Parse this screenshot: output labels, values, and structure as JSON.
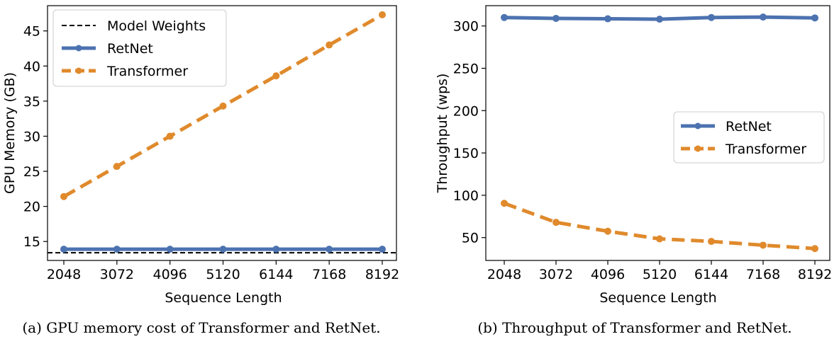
{
  "chart_data": [
    {
      "type": "line",
      "caption": "(a) GPU memory cost of Transformer and RetNet.",
      "xlabel": "Sequence Length",
      "ylabel": "GPU Memory (GB)",
      "categories": [
        "2048",
        "3072",
        "4096",
        "5120",
        "6144",
        "7168",
        "8192"
      ],
      "yticks": [
        15,
        20,
        25,
        30,
        35,
        40,
        45
      ],
      "ylim": [
        12.3,
        48.6
      ],
      "legend_position": "upper-left",
      "reference_line": {
        "name": "Model Weights",
        "value": 13.4,
        "color": "#000000",
        "style": "dashed"
      },
      "series": [
        {
          "name": "RetNet",
          "color": "#4c72b0",
          "style": "solid",
          "values": [
            13.9,
            13.9,
            13.9,
            13.9,
            13.9,
            13.9,
            13.9
          ]
        },
        {
          "name": "Transformer",
          "color": "#e08a2c",
          "style": "dashed",
          "values": [
            21.4,
            25.7,
            30.0,
            34.3,
            38.6,
            43.0,
            47.3
          ]
        }
      ]
    },
    {
      "type": "line",
      "caption": "(b) Throughput of Transformer and RetNet.",
      "xlabel": "Sequence Length",
      "ylabel": "Throughput (wps)",
      "categories": [
        "2048",
        "3072",
        "4096",
        "5120",
        "6144",
        "7168",
        "8192"
      ],
      "yticks": [
        50,
        100,
        150,
        200,
        250,
        300
      ],
      "ylim": [
        23,
        324
      ],
      "legend_position": "center-right",
      "series": [
        {
          "name": "RetNet",
          "color": "#4c72b0",
          "style": "solid",
          "values": [
            310,
            309,
            308.5,
            308,
            310,
            310.5,
            309.5
          ]
        },
        {
          "name": "Transformer",
          "color": "#e08a2c",
          "style": "dashed",
          "values": [
            90.5,
            68,
            57.5,
            48.5,
            45.5,
            41,
            37
          ]
        }
      ]
    }
  ]
}
